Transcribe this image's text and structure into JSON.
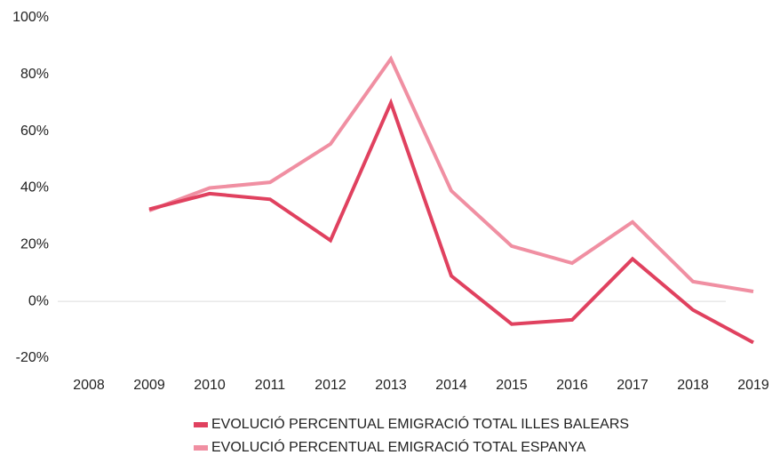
{
  "chart_data": {
    "type": "line",
    "categories": [
      "2008",
      "2009",
      "2010",
      "2011",
      "2012",
      "2013",
      "2014",
      "2015",
      "2016",
      "2017",
      "2018",
      "2019"
    ],
    "series": [
      {
        "name": "EVOLUCIÓ PERCENTUAL EMIGRACIÓ TOTAL ILLES BALEARS",
        "color": "#e0415f",
        "values": [
          null,
          32.5,
          38,
          36,
          21.5,
          70,
          9,
          -8,
          -6.5,
          15,
          -3,
          -14.5
        ]
      },
      {
        "name": "EVOLUCIÓ PERCENTUAL EMIGRACIÓ TOTAL ESPANYA",
        "color": "#f08fa2",
        "values": [
          null,
          32,
          40,
          42,
          55.5,
          85.5,
          39,
          19.5,
          13.5,
          28,
          7,
          3.5
        ]
      }
    ],
    "ylim": [
      -20,
      100
    ],
    "yticks": [
      {
        "value": -20,
        "label": "-20%"
      },
      {
        "value": 0,
        "label": "0%"
      },
      {
        "value": 20,
        "label": "20%"
      },
      {
        "value": 40,
        "label": "40%"
      },
      {
        "value": 60,
        "label": "60%"
      },
      {
        "value": 80,
        "label": "80%"
      },
      {
        "value": 100,
        "label": "100%"
      }
    ],
    "legend": "bottom"
  }
}
